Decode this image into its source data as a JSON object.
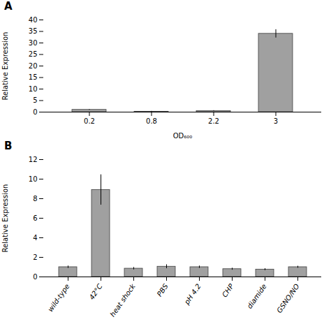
{
  "chart_data": [
    {
      "type": "bar",
      "title": "A",
      "xlabel": "OD₆₀₀",
      "ylabel": "Relative Expression",
      "categories": [
        "0.2",
        "0.8",
        "2.2",
        "3"
      ],
      "values": [
        1.0,
        0.2,
        0.5,
        34.0
      ],
      "errors": [
        0.15,
        0.15,
        0.15,
        1.8
      ],
      "color": "#a0a0a0",
      "ylim": [
        0,
        40
      ],
      "yticks": [
        0,
        5,
        10,
        15,
        20,
        25,
        30,
        35,
        40
      ],
      "grid": false
    },
    {
      "type": "bar",
      "title": "B",
      "ylabel": "Relative Expression",
      "categories": [
        "wild-type",
        "42°C",
        "heat shock",
        "PBS",
        "pH 4.2",
        "CHP",
        "diamide",
        "GSNO/NO"
      ],
      "values": [
        1.0,
        8.9,
        0.85,
        1.05,
        1.0,
        0.8,
        0.75,
        1.0
      ],
      "errors": [
        0.12,
        1.55,
        0.12,
        0.2,
        0.12,
        0.1,
        0.1,
        0.1
      ],
      "color": "#a0a0a0",
      "ylim": [
        0,
        12
      ],
      "yticks": [
        0,
        2,
        4,
        6,
        8,
        10,
        12
      ],
      "grid": false
    }
  ]
}
